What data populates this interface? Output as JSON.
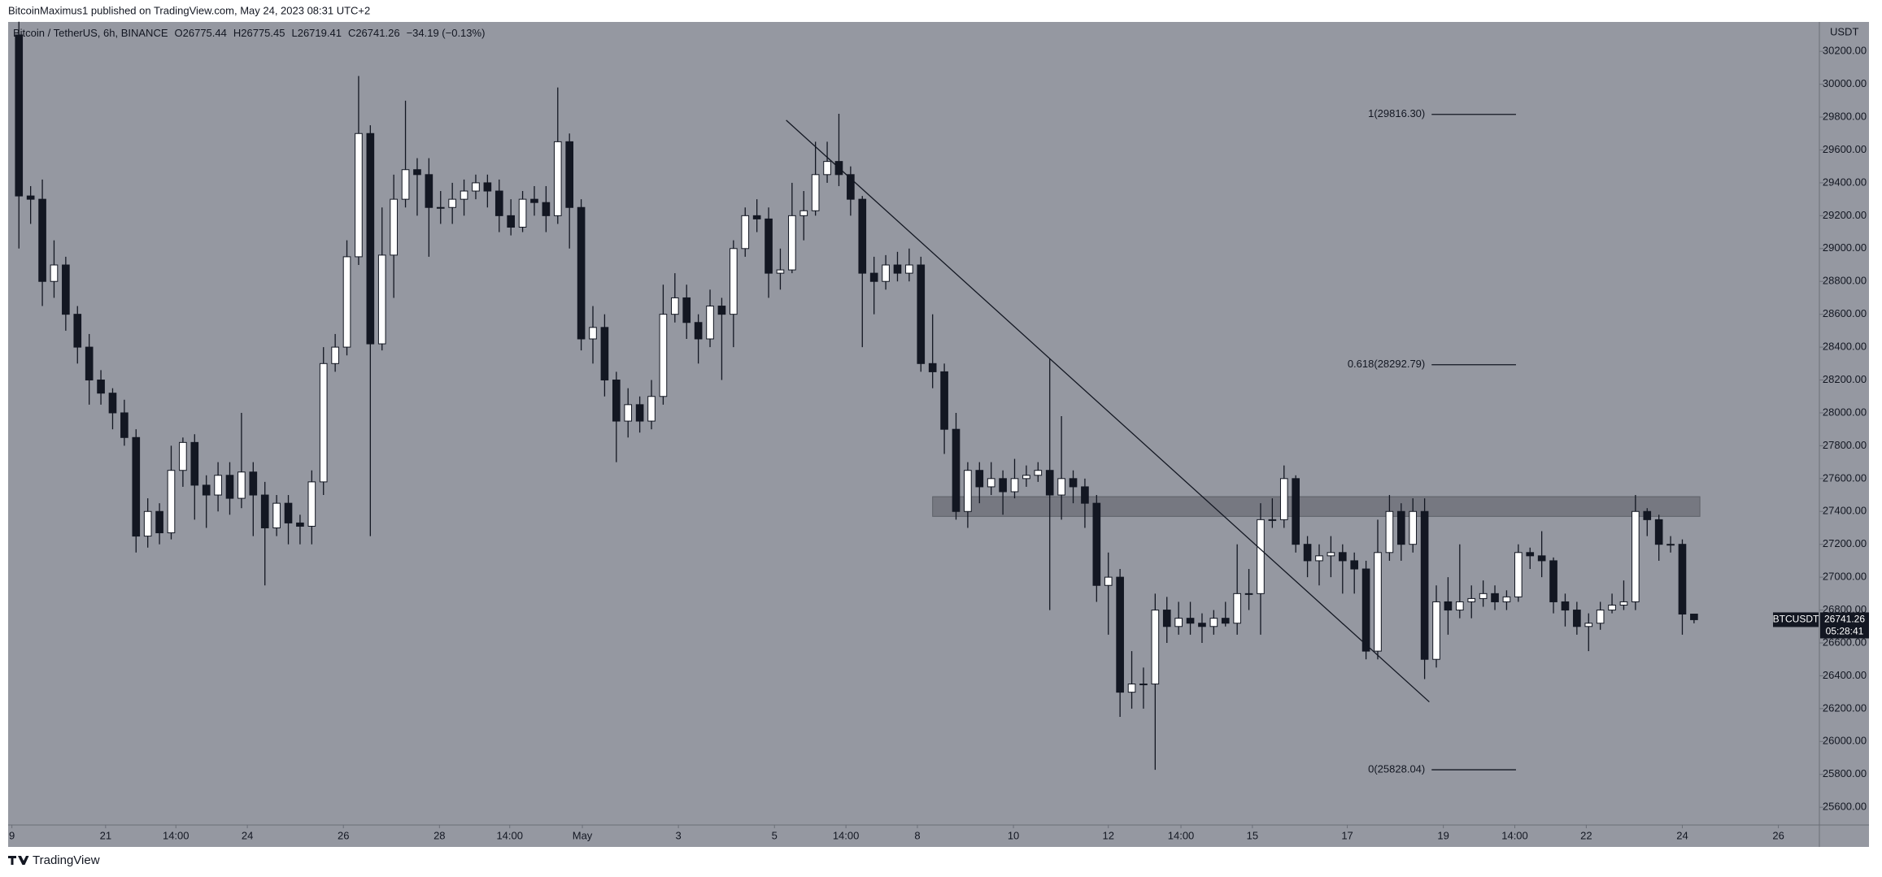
{
  "chart_data": {
    "type": "candlestick",
    "header": "BitcoinMaximus1 published on TradingView.com, May 24, 2023 08:31 UTC+2",
    "symbol": "Bitcoin / TetherUS, 6h, BINANCE",
    "ohlc_text": [
      "O26775.44",
      "H26775.45",
      "L26719.41",
      "C26741.26",
      "−34.19 (−0.13%)"
    ],
    "currency": "USDT",
    "ticker": "BTCUSDT",
    "last_price_label": "26741.26",
    "countdown": "05:28:41",
    "footer": "TradingView",
    "up_color": "#ffffff",
    "down_color": "#131722",
    "background": "#9598a1",
    "open": [
      30300,
      29320,
      29300,
      28800,
      28900,
      28600,
      28400,
      28200,
      28120,
      28000,
      27850,
      27250,
      27400,
      27270,
      27650,
      27820,
      27560,
      27500,
      27620,
      27480,
      27640,
      27500,
      27300,
      27450,
      27330,
      27310,
      27580,
      28300,
      28400,
      28950,
      29700,
      28420,
      28960,
      29300,
      29480,
      29450,
      29250,
      29250,
      29300,
      29350,
      29400,
      29350,
      29200,
      29130,
      29300,
      29280,
      29200,
      29650,
      29250,
      28450,
      28520,
      28200,
      27950,
      28050,
      27950,
      28100,
      28600,
      28700,
      28550,
      28450,
      28650,
      28600,
      29000,
      29200,
      29180,
      28850,
      28870,
      29200,
      29230,
      29450,
      29530,
      29450,
      29300,
      28850,
      28800,
      28900,
      28850,
      28900,
      28300,
      28250,
      27900,
      27400,
      27650,
      27550,
      27600,
      27520,
      27600,
      27620,
      27650,
      27500,
      27600,
      27550,
      27450,
      26950,
      27000,
      26300,
      26350,
      26350,
      26800,
      26700,
      26750,
      26720,
      26700,
      26750,
      26720,
      26900,
      26900,
      27350,
      27350,
      27600,
      27200,
      27100,
      27130,
      27150,
      27100,
      27050,
      26550,
      27150,
      27400,
      27200,
      27400,
      26500,
      26850,
      26800,
      26850,
      26870,
      26900,
      26850,
      26880,
      27150,
      27130,
      27100,
      26850,
      26800,
      26700,
      26720,
      26800,
      26830,
      26850,
      27400,
      27350,
      27200,
      27200,
      26775.44
    ],
    "high": [
      30380,
      29380,
      29420,
      29050,
      28950,
      28650,
      28480,
      28260,
      28150,
      28080,
      27900,
      27480,
      27450,
      27800,
      27850,
      27870,
      27620,
      27700,
      27700,
      28000,
      27700,
      27580,
      27500,
      27500,
      27380,
      27650,
      28400,
      28480,
      29050,
      30050,
      29750,
      29250,
      29450,
      29900,
      29550,
      29550,
      29350,
      29400,
      29420,
      29450,
      29450,
      29420,
      29300,
      29350,
      29380,
      29380,
      29980,
      29700,
      29300,
      28650,
      28600,
      28250,
      28150,
      28100,
      28200,
      28780,
      28850,
      28780,
      28600,
      28750,
      28700,
      29050,
      29250,
      29300,
      29250,
      29000,
      29400,
      29350,
      29650,
      29650,
      29820,
      29500,
      29320,
      28950,
      28960,
      28980,
      29000,
      28950,
      28600,
      28300,
      28000,
      27700,
      27700,
      27700,
      27650,
      27720,
      27680,
      27700,
      28330,
      27980,
      27650,
      27600,
      27500,
      27150,
      27050,
      26550,
      26450,
      26900,
      26880,
      26850,
      26850,
      26780,
      26800,
      26850,
      27200,
      27050,
      27450,
      27480,
      27680,
      27620,
      27250,
      27200,
      27250,
      27200,
      27150,
      27100,
      27350,
      27500,
      27450,
      27480,
      27480,
      26950,
      27000,
      27200,
      26950,
      26980,
      26950,
      26920,
      27200,
      27180,
      27280,
      27120,
      26900,
      26850,
      26780,
      26850,
      26900,
      26980,
      27500,
      27420,
      27380,
      27250,
      27230,
      26775.45
    ],
    "low": [
      29000,
      29150,
      28650,
      28700,
      28500,
      28300,
      28050,
      28050,
      27900,
      27800,
      27150,
      27180,
      27200,
      27230,
      27550,
      27350,
      27300,
      27400,
      27380,
      27420,
      27250,
      26950,
      27250,
      27200,
      27200,
      27200,
      27500,
      28250,
      28350,
      28900,
      27250,
      28380,
      28700,
      29250,
      29200,
      28950,
      29150,
      29150,
      29200,
      29300,
      29250,
      29100,
      29080,
      29100,
      29200,
      29100,
      29150,
      29000,
      28380,
      28300,
      28100,
      27700,
      27850,
      27880,
      27900,
      28050,
      28550,
      28450,
      28300,
      28400,
      28200,
      28400,
      28950,
      29100,
      28700,
      28750,
      28850,
      29050,
      29200,
      29400,
      29380,
      29200,
      28400,
      28600,
      28750,
      28800,
      28800,
      28250,
      28150,
      27750,
      27350,
      27300,
      27450,
      27500,
      27380,
      27480,
      27550,
      27580,
      26800,
      27350,
      27450,
      27300,
      26850,
      26650,
      26150,
      26200,
      26200,
      25828,
      26600,
      26650,
      26650,
      26600,
      26650,
      26700,
      26650,
      26800,
      26650,
      27300,
      27300,
      27150,
      27000,
      26950,
      27000,
      26900,
      26900,
      26500,
      26500,
      27100,
      27100,
      27150,
      26380,
      26450,
      26650,
      26750,
      26750,
      26820,
      26800,
      26800,
      26850,
      27050,
      27000,
      26780,
      26700,
      26650,
      26550,
      26680,
      26780,
      26800,
      26800,
      27250,
      27100,
      27150,
      26650,
      26719.41
    ],
    "close": [
      29320,
      29300,
      28800,
      28900,
      28600,
      28400,
      28200,
      28120,
      28000,
      27850,
      27250,
      27400,
      27270,
      27650,
      27820,
      27560,
      27500,
      27620,
      27480,
      27640,
      27500,
      27300,
      27450,
      27330,
      27310,
      27580,
      28300,
      28400,
      28950,
      29700,
      28420,
      28960,
      29300,
      29480,
      29450,
      29250,
      29250,
      29300,
      29350,
      29400,
      29350,
      29200,
      29130,
      29300,
      29280,
      29200,
      29650,
      29250,
      28450,
      28520,
      28200,
      27950,
      28050,
      27950,
      28100,
      28600,
      28700,
      28550,
      28450,
      28650,
      28600,
      29000,
      29200,
      29180,
      28850,
      28870,
      29200,
      29230,
      29450,
      29530,
      29450,
      29300,
      28850,
      28800,
      28900,
      28850,
      28900,
      28300,
      28250,
      27900,
      27400,
      27650,
      27550,
      27600,
      27520,
      27600,
      27620,
      27650,
      27500,
      27600,
      27550,
      27450,
      26950,
      27000,
      26300,
      26350,
      26350,
      26800,
      26700,
      26750,
      26720,
      26700,
      26750,
      26720,
      26900,
      26900,
      27350,
      27350,
      27600,
      27200,
      27100,
      27130,
      27150,
      27100,
      27050,
      26550,
      27150,
      27400,
      27200,
      27400,
      26500,
      26850,
      26800,
      26850,
      26870,
      26900,
      26850,
      26880,
      27150,
      27130,
      27100,
      26850,
      26800,
      26700,
      26720,
      26800,
      26830,
      26850,
      27400,
      27350,
      27200,
      27200,
      26775.44,
      26741.26
    ],
    "xlim": [
      -0.92,
      153.7
    ],
    "xticks": [
      {
        "value": -0.6,
        "label": "9"
      },
      {
        "value": 7.4,
        "label": "21"
      },
      {
        "value": 13.4,
        "label": "14:00"
      },
      {
        "value": 19.5,
        "label": "24"
      },
      {
        "value": 27.7,
        "label": "26"
      },
      {
        "value": 35.9,
        "label": "28"
      },
      {
        "value": 41.9,
        "label": "14:00"
      },
      {
        "value": 48.1,
        "label": "May"
      },
      {
        "value": 56.3,
        "label": "3"
      },
      {
        "value": 64.5,
        "label": "5"
      },
      {
        "value": 70.6,
        "label": "14:00"
      },
      {
        "value": 76.7,
        "label": "8"
      },
      {
        "value": 84.9,
        "label": "10"
      },
      {
        "value": 93,
        "label": "12"
      },
      {
        "value": 99.2,
        "label": "14:00"
      },
      {
        "value": 105.3,
        "label": "15"
      },
      {
        "value": 113.4,
        "label": "17"
      },
      {
        "value": 121.6,
        "label": "19"
      },
      {
        "value": 127.7,
        "label": "14:00"
      },
      {
        "value": 133.8,
        "label": "22"
      },
      {
        "value": 142,
        "label": "24"
      },
      {
        "value": 150.2,
        "label": "26"
      }
    ],
    "ylim": [
      25492,
      30379
    ],
    "yticks": [
      {
        "value": 25600,
        "label": "25600.00"
      },
      {
        "value": 25800,
        "label": "25800.00"
      },
      {
        "value": 26000,
        "label": "26000.00"
      },
      {
        "value": 26200,
        "label": "26200.00"
      },
      {
        "value": 26400,
        "label": "26400.00"
      },
      {
        "value": 26600,
        "label": "26600.00"
      },
      {
        "value": 26800,
        "label": "26800.00"
      },
      {
        "value": 27000,
        "label": "27000.00"
      },
      {
        "value": 27200,
        "label": "27200.00"
      },
      {
        "value": 27400,
        "label": "27400.00"
      },
      {
        "value": 27600,
        "label": "27600.00"
      },
      {
        "value": 27800,
        "label": "27800.00"
      },
      {
        "value": 28000,
        "label": "28000.00"
      },
      {
        "value": 28200,
        "label": "28200.00"
      },
      {
        "value": 28400,
        "label": "28400.00"
      },
      {
        "value": 28600,
        "label": "28600.00"
      },
      {
        "value": 28800,
        "label": "28800.00"
      },
      {
        "value": 29000,
        "label": "29000.00"
      },
      {
        "value": 29200,
        "label": "29200.00"
      },
      {
        "value": 29400,
        "label": "29400.00"
      },
      {
        "value": 29600,
        "label": "29600.00"
      },
      {
        "value": 29800,
        "label": "29800.00"
      },
      {
        "value": 30000,
        "label": "30000.00"
      },
      {
        "value": 30200,
        "label": "30200.00"
      }
    ],
    "grid": false,
    "fibs": [
      {
        "value": 29816.3,
        "label": "1(29816.30)"
      },
      {
        "value": 28292.79,
        "label": "0.618(28292.79)"
      },
      {
        "value": 25828.04,
        "label": "0(25828.04)"
      }
    ],
    "fib_x": [
      120.6,
      127.8
    ],
    "zone": {
      "x": [
        78,
        143.5
      ],
      "y": [
        27370,
        27490
      ]
    },
    "trendline": {
      "x": [
        65.5,
        120.4
      ],
      "y": [
        29781,
        26241
      ]
    }
  }
}
